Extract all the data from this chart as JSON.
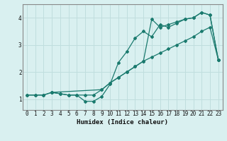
{
  "title": "",
  "xlabel": "Humidex (Indice chaleur)",
  "bg_color": "#d9f0f0",
  "grid_color": "#c0dede",
  "line_color": "#1a7a6e",
  "xlim": [
    -0.5,
    23.5
  ],
  "ylim": [
    0.6,
    4.5
  ],
  "xticks": [
    0,
    1,
    2,
    3,
    4,
    5,
    6,
    7,
    8,
    9,
    10,
    11,
    12,
    13,
    14,
    15,
    16,
    17,
    18,
    19,
    20,
    21,
    22,
    23
  ],
  "yticks": [
    1,
    2,
    3,
    4
  ],
  "line1_x": [
    0,
    1,
    2,
    3,
    4,
    5,
    6,
    7,
    8,
    9,
    10,
    11,
    12,
    13,
    14,
    15,
    16,
    17,
    18,
    19,
    20,
    21,
    22,
    23
  ],
  "line1_y": [
    1.15,
    1.15,
    1.15,
    1.25,
    1.2,
    1.15,
    1.15,
    1.15,
    1.15,
    1.35,
    1.6,
    1.8,
    2.0,
    2.2,
    2.4,
    2.55,
    2.7,
    2.85,
    3.0,
    3.15,
    3.3,
    3.5,
    3.65,
    2.45
  ],
  "line2_x": [
    0,
    1,
    2,
    3,
    4,
    5,
    6,
    7,
    8,
    9,
    10,
    11,
    12,
    13,
    14,
    15,
    16,
    17,
    18,
    19,
    20,
    21,
    22,
    23
  ],
  "line2_y": [
    1.15,
    1.15,
    1.15,
    1.25,
    1.2,
    1.15,
    1.15,
    0.92,
    0.92,
    1.1,
    1.55,
    2.35,
    2.75,
    3.25,
    3.5,
    3.3,
    3.75,
    3.65,
    3.8,
    3.95,
    4.0,
    4.2,
    4.1,
    2.45
  ],
  "line3_x": [
    3,
    9,
    10,
    11,
    12,
    13,
    14,
    15,
    16,
    17,
    18,
    19,
    20,
    21,
    22,
    23
  ],
  "line3_y": [
    1.25,
    1.35,
    1.6,
    1.8,
    2.0,
    2.2,
    2.4,
    3.95,
    3.65,
    3.75,
    3.85,
    3.95,
    4.0,
    4.2,
    4.1,
    2.45
  ]
}
